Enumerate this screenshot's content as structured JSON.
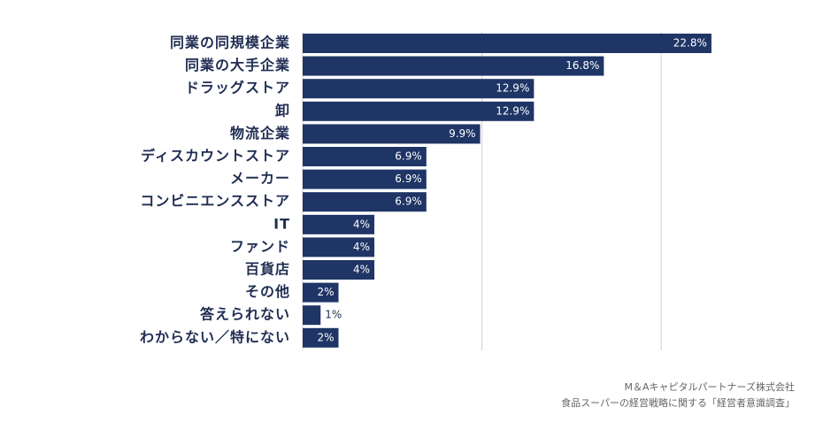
{
  "chart_data": {
    "type": "hbar",
    "categories": [
      "同業の同規模企業",
      "同業の大手企業",
      "ドラッグストア",
      "卸",
      "物流企業",
      "ディスカウントストア",
      "メーカー",
      "コンビニエンスストア",
      "IT",
      "ファンド",
      "百貨店",
      "その他",
      "答えられない",
      "わからない／特にない"
    ],
    "values": [
      22.8,
      16.8,
      12.9,
      12.9,
      9.9,
      6.9,
      6.9,
      6.9,
      4,
      4,
      4,
      2,
      1,
      2
    ],
    "value_labels": [
      "22.8%",
      "16.8%",
      "12.9%",
      "12.9%",
      "9.9%",
      "6.9%",
      "6.9%",
      "6.9%",
      "4%",
      "4%",
      "4%",
      "2%",
      "1%",
      "2%"
    ],
    "color": "#1f3566",
    "xlim": [
      0,
      25
    ],
    "xticks": [
      0,
      10,
      20
    ],
    "grid": true,
    "source": [
      "M＆Aキャピタルパートナーズ株式会社",
      "食品スーパーの経営戦略に関する「経営者意識調査」"
    ]
  }
}
